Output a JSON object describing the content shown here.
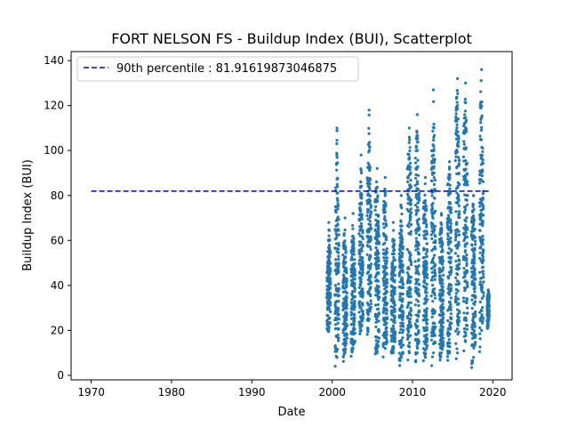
{
  "chart_data": {
    "type": "scatter",
    "title": "FORT NELSON FS - Buildup Index (BUI), Scatterplot",
    "xlabel": "Date",
    "ylabel": "Buildup Index (BUI)",
    "xlim": [
      1967.5,
      2022.4
    ],
    "ylim": [
      -2,
      144
    ],
    "xticks": [
      1970,
      1980,
      1990,
      2000,
      2010,
      2020
    ],
    "yticks": [
      0,
      20,
      40,
      60,
      80,
      100,
      120,
      140
    ],
    "grid": false,
    "legend_position": "top-left",
    "reference_line": {
      "label": "90th percentile : 81.91619873046875",
      "y": 81.91619873046875,
      "x_range": [
        1970,
        2019.7
      ],
      "color": "#0000cd",
      "style": "dashed"
    },
    "series": [
      {
        "color": "#1f77b4",
        "marker_size": 1.6,
        "seasons": [
          {
            "x": [
              1999.35,
              1999.8
            ],
            "ymin": [
              15,
              20,
              25
            ],
            "ymax": [
              45,
              68,
              55
            ]
          },
          {
            "x": [
              2000.35,
              2000.85
            ],
            "ymin": [
              3,
              8,
              15
            ],
            "ymax": [
              70,
              110,
              65
            ]
          },
          {
            "x": [
              2001.35,
              2001.85
            ],
            "ymin": [
              5,
              10,
              15
            ],
            "ymax": [
              55,
              70,
              40
            ]
          },
          {
            "x": [
              2002.35,
              2002.85
            ],
            "ymin": [
              8,
              12,
              15
            ],
            "ymax": [
              55,
              72,
              45
            ]
          },
          {
            "x": [
              2003.35,
              2003.85
            ],
            "ymin": [
              10,
              20,
              25
            ],
            "ymax": [
              70,
              98,
              60
            ]
          },
          {
            "x": [
              2004.35,
              2004.85
            ],
            "ymin": [
              15,
              25,
              30
            ],
            "ymax": [
              95,
              118,
              75
            ]
          },
          {
            "x": [
              2005.35,
              2005.85
            ],
            "ymin": [
              5,
              10,
              15
            ],
            "ymax": [
              80,
              92,
              65
            ]
          },
          {
            "x": [
              2006.35,
              2006.85
            ],
            "ymin": [
              8,
              12,
              15
            ],
            "ymax": [
              75,
              88,
              55
            ]
          },
          {
            "x": [
              2007.35,
              2007.85
            ],
            "ymin": [
              8,
              10,
              12
            ],
            "ymax": [
              45,
              68,
              50
            ]
          },
          {
            "x": [
              2008.35,
              2008.85
            ],
            "ymin": [
              3,
              8,
              10
            ],
            "ymax": [
              60,
              80,
              55
            ]
          },
          {
            "x": [
              2009.35,
              2009.85
            ],
            "ymin": [
              5,
              10,
              20
            ],
            "ymax": [
              95,
              110,
              85
            ]
          },
          {
            "x": [
              2010.35,
              2010.85
            ],
            "ymin": [
              5,
              10,
              15
            ],
            "ymax": [
              100,
              116,
              80
            ]
          },
          {
            "x": [
              2011.35,
              2011.85
            ],
            "ymin": [
              5,
              8,
              12
            ],
            "ymax": [
              80,
              88,
              60
            ]
          },
          {
            "x": [
              2012.35,
              2012.85
            ],
            "ymin": [
              3,
              10,
              15
            ],
            "ymax": [
              100,
              127,
              85
            ]
          },
          {
            "x": [
              2013.35,
              2013.85
            ],
            "ymin": [
              5,
              10,
              12
            ],
            "ymax": [
              60,
              72,
              50
            ]
          },
          {
            "x": [
              2014.35,
              2014.85
            ],
            "ymin": [
              5,
              10,
              20
            ],
            "ymax": [
              85,
              95,
              70
            ]
          },
          {
            "x": [
              2015.35,
              2015.85
            ],
            "ymin": [
              5,
              10,
              20
            ],
            "ymax": [
              115,
              132,
              100
            ]
          },
          {
            "x": [
              2016.35,
              2016.85
            ],
            "ymin": [
              5,
              15,
              20
            ],
            "ymax": [
              110,
              130,
              90
            ]
          },
          {
            "x": [
              2017.35,
              2017.85
            ],
            "ymin": [
              3,
              8,
              15
            ],
            "ymax": [
              70,
              80,
              60
            ]
          },
          {
            "x": [
              2018.35,
              2018.85
            ],
            "ymin": [
              10,
              20,
              25
            ],
            "ymax": [
              115,
              136,
              80
            ]
          },
          {
            "x": [
              2019.3,
              2019.55
            ],
            "ymin": [
              20,
              22,
              25
            ],
            "ymax": [
              35,
              38,
              36
            ]
          }
        ]
      }
    ]
  }
}
